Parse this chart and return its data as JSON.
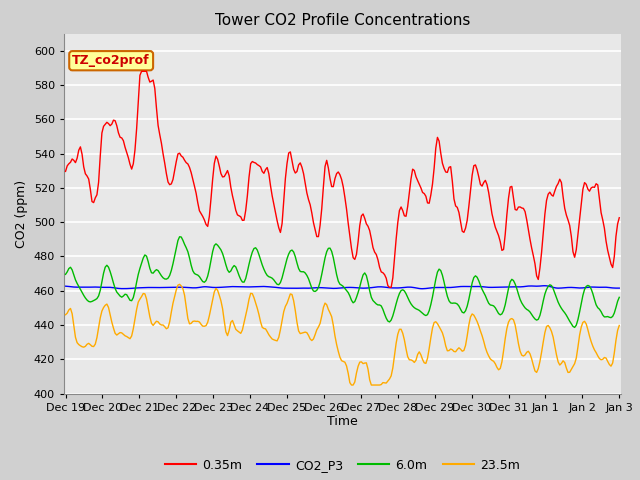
{
  "title": "Tower CO2 Profile Concentrations",
  "xlabel": "Time",
  "ylabel": "CO2 (ppm)",
  "ylim": [
    400,
    610
  ],
  "yticks": [
    400,
    420,
    440,
    460,
    480,
    500,
    520,
    540,
    560,
    580,
    600
  ],
  "annotation_text": "TZ_co2prof",
  "annotation_color": "#cc0000",
  "annotation_bg": "#ffff99",
  "annotation_border": "#cc6600",
  "line_colors": {
    "0.35m": "#ff0000",
    "CO2_P3": "#0000ff",
    "6.0m": "#00bb00",
    "23.5m": "#ffaa00"
  },
  "bg_color": "#d0d0d0",
  "plot_bg": "#e8e8e8",
  "line_width": 1.0,
  "num_points": 336
}
